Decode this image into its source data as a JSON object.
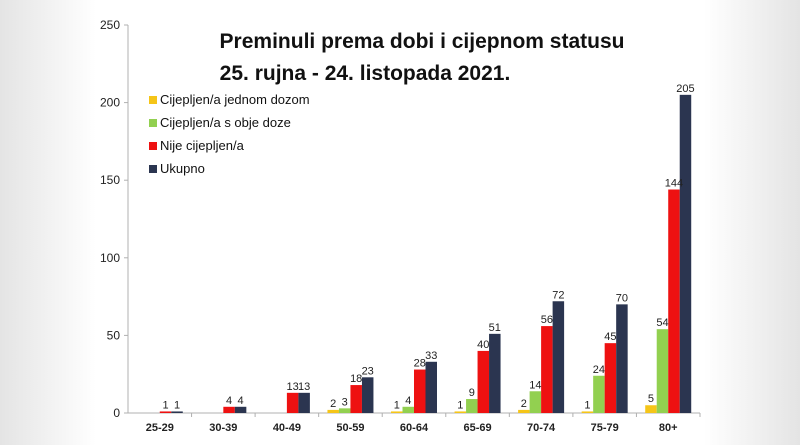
{
  "chart_data": {
    "type": "bar",
    "title": "Preminuli prema dobi i cijepnom statusu",
    "subtitle": "25. rujna - 24. listopada 2021.",
    "categories": [
      "25-29",
      "30-39",
      "40-49",
      "50-59",
      "60-64",
      "65-69",
      "70-74",
      "75-79",
      "80+"
    ],
    "series": [
      {
        "name": "Cijepljen/a jednom dozom",
        "color": "#f5c518",
        "values": [
          0,
          0,
          0,
          2,
          1,
          1,
          2,
          1,
          5
        ],
        "labels": [
          "",
          "",
          "",
          "2",
          "1",
          "1",
          "2",
          "1",
          "5"
        ]
      },
      {
        "name": "Cijepljen/a s obje doze",
        "color": "#92d050",
        "values": [
          0,
          0,
          0,
          3,
          4,
          9,
          14,
          24,
          54
        ],
        "labels": [
          "",
          "",
          "",
          "3",
          "4",
          "9",
          "14",
          "24",
          "54"
        ]
      },
      {
        "name": "Nije cijepljen/a",
        "color": "#ee1111",
        "values": [
          1,
          4,
          13,
          18,
          28,
          40,
          56,
          45,
          144
        ],
        "labels": [
          "1",
          "4",
          "13",
          "18",
          "28",
          "40",
          "56",
          "45",
          "144"
        ]
      },
      {
        "name": "Ukupno",
        "color": "#2b3550",
        "values": [
          1,
          4,
          13,
          23,
          33,
          51,
          72,
          70,
          205
        ],
        "labels": [
          "1",
          "4",
          "13",
          "23",
          "33",
          "51",
          "72",
          "70",
          "205"
        ]
      }
    ],
    "ylim": [
      0,
      250
    ],
    "yticks": [
      "0",
      "50",
      "100",
      "150",
      "200",
      "250"
    ],
    "grid": false,
    "legend_position": "top-left"
  }
}
